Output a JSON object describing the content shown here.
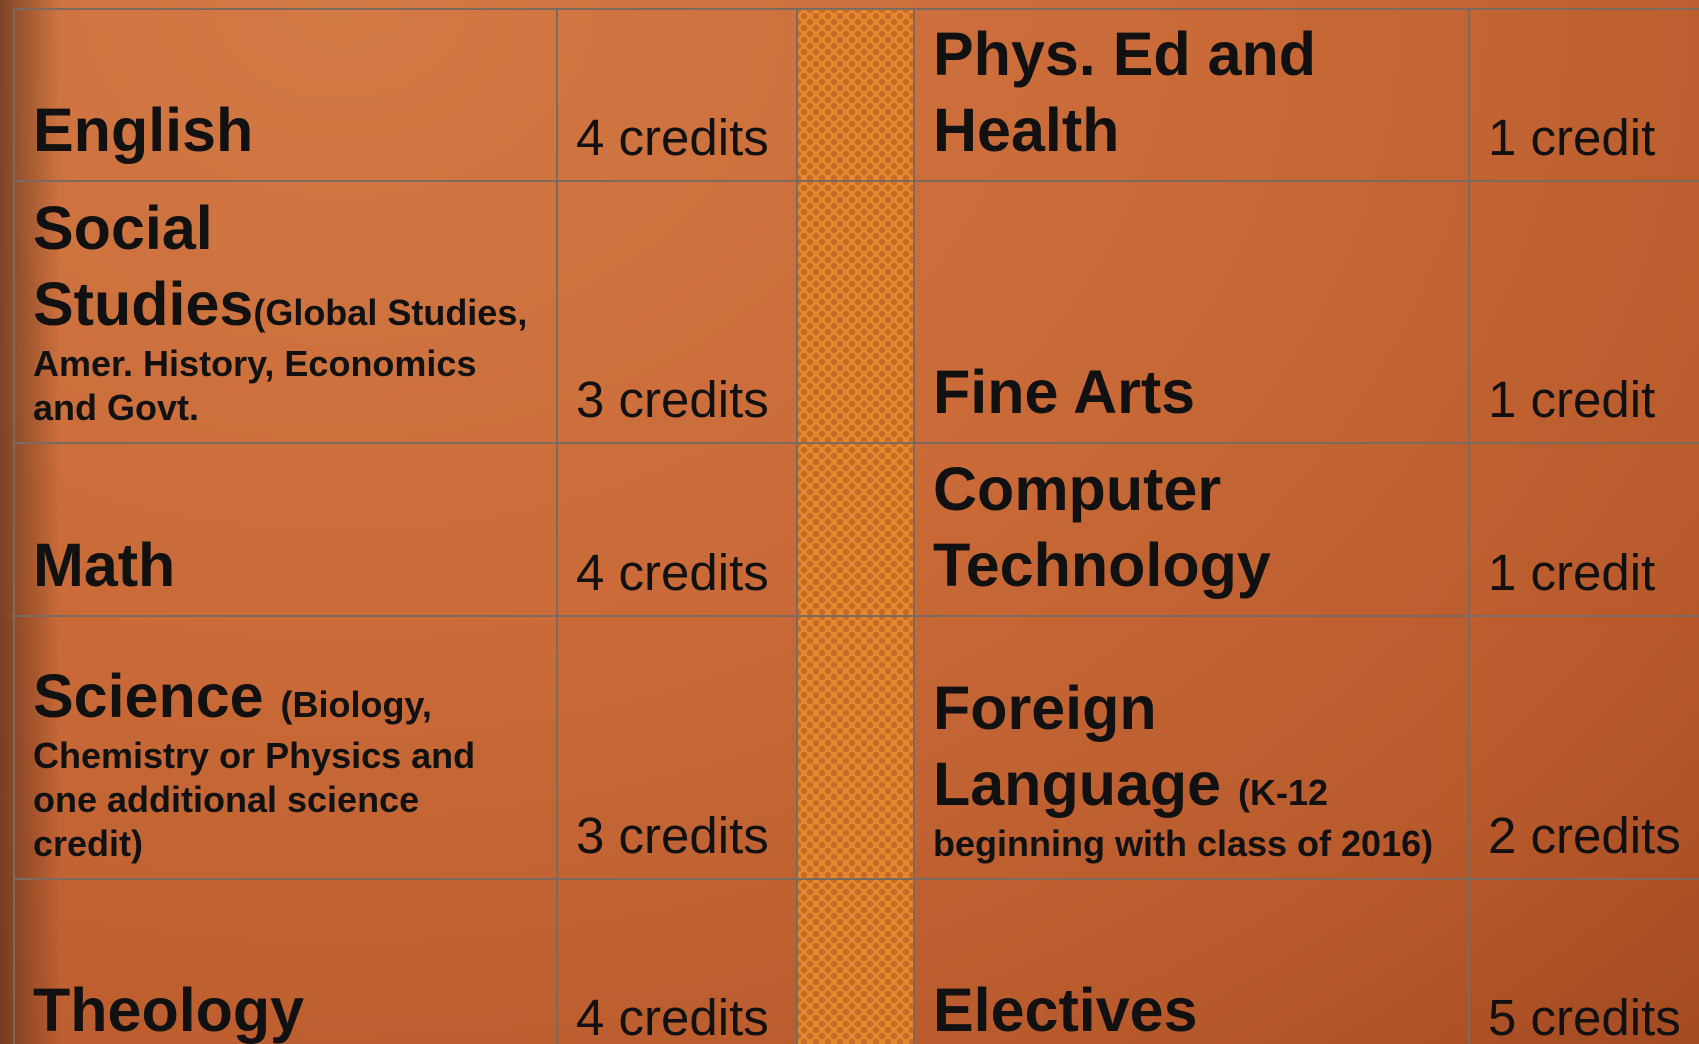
{
  "table": {
    "rows": [
      {
        "left": {
          "subject": "English",
          "credits": "4 credits"
        },
        "right": {
          "subject": "Phys. Ed and Health",
          "credits": "1 credit"
        }
      },
      {
        "left": {
          "subject": "Social Studies",
          "note": "(Global Studies, Amer. History, Economics and Govt.",
          "credits": "3 credits"
        },
        "right": {
          "subject": "Fine Arts",
          "credits": "1 credit"
        }
      },
      {
        "left": {
          "subject": "Math",
          "credits": "4 credits"
        },
        "right": {
          "subject": "Computer Technology",
          "credits": "1 credit"
        }
      },
      {
        "left": {
          "subject": "Science ",
          "note": "(Biology, Chemistry or Physics and one additional science credit)",
          "credits": "3 credits"
        },
        "right": {
          "subject": "Foreign Language ",
          "note": "(K-12 beginning with class of 2016)",
          "credits": "2 credits"
        }
      },
      {
        "left": {
          "subject": "Theology",
          "credits": "4 credits"
        },
        "right": {
          "subject": "Electives",
          "credits": "5 credits"
        }
      }
    ]
  }
}
